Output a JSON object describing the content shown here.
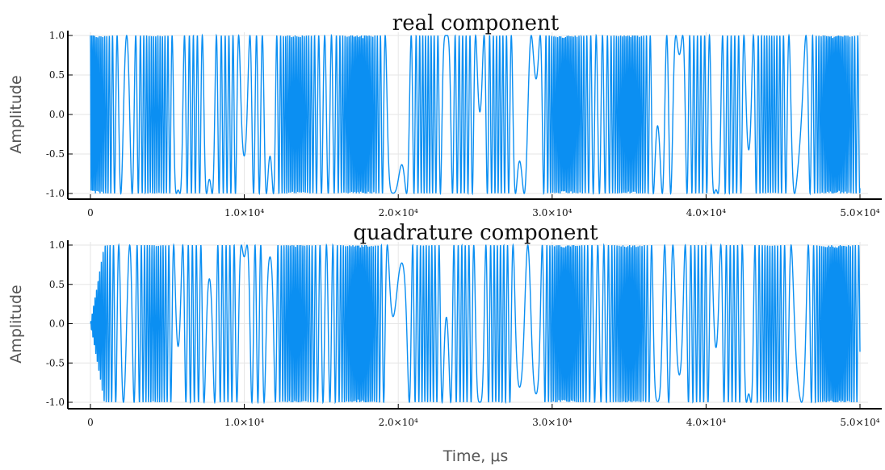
{
  "chart_data": [
    {
      "type": "line",
      "title": "real component",
      "xlabel": "",
      "ylabel": "Amplitude",
      "xlim": [
        0,
        50000
      ],
      "ylim": [
        -1.0,
        1.0
      ],
      "x_ticks": [
        0,
        10000,
        20000,
        30000,
        40000,
        50000
      ],
      "x_tick_labels": [
        "0",
        "1.0×10⁴",
        "2.0×10⁴",
        "3.0×10⁴",
        "4.0×10⁴",
        "5.0×10⁴"
      ],
      "y_ticks": [
        -1.0,
        -0.5,
        0.0,
        0.5,
        1.0
      ],
      "y_tick_labels": [
        "-1.0",
        "-0.5",
        "0.0",
        "0.5",
        "1.0"
      ],
      "grid": true,
      "color": "#0b8ff2",
      "series": [
        {
          "signal": "cos",
          "description_points": {
            "x": [
              0,
              1000,
              2000,
              5000,
              10000,
              13000,
              16000,
              20000,
              26000,
              30000,
              35000,
              40000,
              45000,
              50000
            ],
            "y_envelope": [
              1.0,
              1.0,
              1.0,
              1.0,
              1.0,
              1.0,
              1.0,
              1.0,
              1.0,
              1.0,
              1.0,
              1.0,
              1.0,
              1.0
            ]
          }
        }
      ]
    },
    {
      "type": "line",
      "title": "quadrature component",
      "xlabel": "Time, μs",
      "ylabel": "Amplitude",
      "xlim": [
        0,
        50000
      ],
      "ylim": [
        -1.0,
        1.0
      ],
      "x_ticks": [
        0,
        10000,
        20000,
        30000,
        40000,
        50000
      ],
      "x_tick_labels": [
        "0",
        "1.0×10⁴",
        "2.0×10⁴",
        "3.0×10⁴",
        "4.0×10⁴",
        "5.0×10⁴"
      ],
      "y_ticks": [
        -1.0,
        -0.5,
        0.0,
        0.5,
        1.0
      ],
      "y_tick_labels": [
        "-1.0",
        "-0.5",
        "0.0",
        "0.5",
        "1.0"
      ],
      "grid": true,
      "color": "#0b8ff2",
      "series": [
        {
          "signal": "sin",
          "description_points": {
            "x": [
              0,
              1000,
              2000,
              5000,
              10000,
              13000,
              16000,
              20000,
              26000,
              30000,
              35000,
              40000,
              45000,
              50000
            ],
            "y_envelope": [
              0.0,
              1.0,
              1.0,
              1.0,
              1.0,
              1.0,
              1.0,
              1.0,
              1.0,
              1.0,
              1.0,
              1.0,
              1.0,
              1.0
            ]
          }
        }
      ]
    }
  ]
}
